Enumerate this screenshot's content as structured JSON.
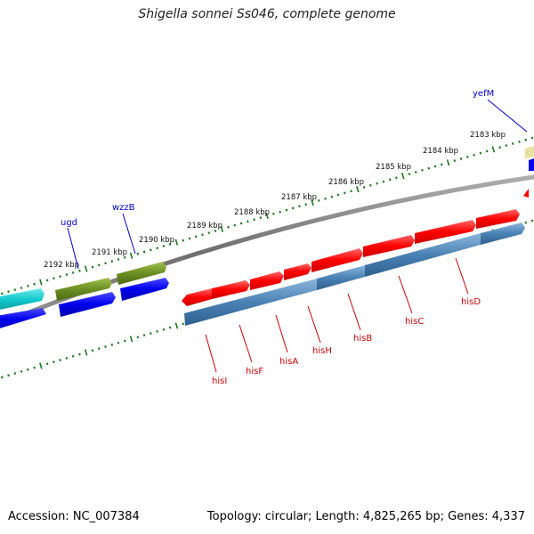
{
  "title": "Shigella sonnei Ss046, complete genome",
  "footer": {
    "accession": "Accession: NC_007384",
    "summary": "Topology: circular; Length: 4,825,265 bp; Genes: 4,337"
  },
  "colors": {
    "backbone": "#7a7a7a",
    "tick": "#1a7a1a",
    "forward_gene": "#ff0000",
    "reverse_gene": "#4a82b4",
    "olive_gene": "#6b8e23",
    "blue_gene": "#0000ee",
    "cyan_gene": "#10c8cc",
    "yellow_gene": "#e8e0a0",
    "label_blue": "#0000cc",
    "label_red": "#cc0000"
  },
  "kbp_labels": [
    "2192 kbp",
    "2191 kbp",
    "2190 kbp",
    "2189 kbp",
    "2188 kbp",
    "2187 kbp",
    "2186 kbp",
    "2185 kbp",
    "2184 kbp",
    "2183 kbp"
  ],
  "gene_labels_top": [
    "ugd",
    "wzzB",
    "yefM"
  ],
  "gene_labels_bottom": [
    "hisI",
    "hisF",
    "hisA",
    "hisH",
    "hisB",
    "hisC",
    "hisD"
  ]
}
